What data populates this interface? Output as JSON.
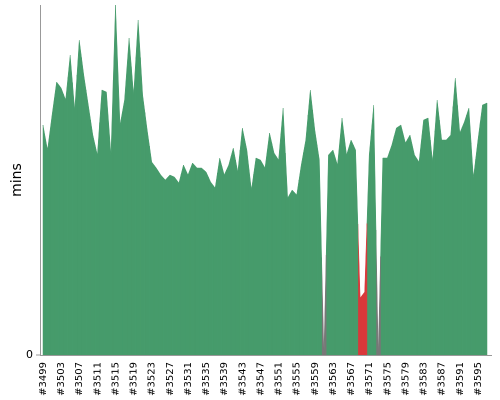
{
  "chart_data": {
    "type": "area",
    "y_label": "mins",
    "categories": [
      "#3499",
      null,
      null,
      null,
      "#3503",
      null,
      null,
      null,
      "#3507",
      null,
      null,
      null,
      "#3511",
      null,
      null,
      null,
      "#3515",
      null,
      null,
      null,
      "#3519",
      null,
      null,
      null,
      "#3523",
      null,
      null,
      null,
      "#3527",
      null,
      null,
      null,
      "#3531",
      null,
      null,
      null,
      "#3535",
      null,
      null,
      null,
      "#3539",
      null,
      null,
      null,
      "#3543",
      null,
      null,
      null,
      "#3547",
      null,
      null,
      null,
      "#3551",
      null,
      null,
      null,
      "#3555",
      null,
      null,
      null,
      "#3559",
      null,
      null,
      null,
      "#3563",
      null,
      null,
      null,
      "#3567",
      null,
      null,
      null,
      "#3571",
      null,
      null,
      null,
      "#3575",
      null,
      null,
      null,
      "#3579",
      null,
      null,
      null,
      "#3583",
      null,
      null,
      null,
      "#3587",
      null,
      null,
      null,
      "#3591",
      null,
      null,
      null,
      "#3595",
      null,
      null
    ],
    "values": [
      46,
      41,
      48,
      54.6,
      53.4,
      51,
      60,
      49,
      63,
      56,
      50,
      44,
      40,
      53,
      52.6,
      40,
      70,
      46,
      51,
      63.4,
      52,
      67,
      52,
      45,
      38.6,
      37.4,
      36,
      35,
      36,
      35.6,
      34.4,
      38,
      36,
      38.4,
      37.4,
      37.4,
      36.6,
      34.6,
      33.4,
      39.4,
      36,
      38,
      41.4,
      36.6,
      45.4,
      41,
      33,
      39.4,
      39,
      37.4,
      44.4,
      40.4,
      39,
      49.4,
      31.4,
      33,
      32,
      38,
      43,
      53,
      45,
      39,
      0,
      40,
      41,
      38,
      47.4,
      40,
      43,
      41,
      11.4,
      12.6,
      40,
      50,
      0,
      39.4,
      39.4,
      42,
      45.4,
      46,
      42.4,
      44,
      40,
      38.6,
      47,
      47.4,
      38.6,
      51,
      43,
      43,
      44,
      55.4,
      44.4,
      46.6,
      49.4,
      35.4,
      43,
      50,
      50.4
    ],
    "colors": [
      "#469b6b",
      "#469b6b",
      "#469b6b",
      "#469b6b",
      "#469b6b",
      "#469b6b",
      "#469b6b",
      "#469b6b",
      "#469b6b",
      "#469b6b",
      "#469b6b",
      "#469b6b",
      "#469b6b",
      "#469b6b",
      "#469b6b",
      "#469b6b",
      "#469b6b",
      "#469b6b",
      "#469b6b",
      "#469b6b",
      "#469b6b",
      "#469b6b",
      "#469b6b",
      "#469b6b",
      "#469b6b",
      "#469b6b",
      "#469b6b",
      "#469b6b",
      "#469b6b",
      "#469b6b",
      "#469b6b",
      "#469b6b",
      "#469b6b",
      "#469b6b",
      "#469b6b",
      "#469b6b",
      "#469b6b",
      "#469b6b",
      "#469b6b",
      "#469b6b",
      "#469b6b",
      "#469b6b",
      "#469b6b",
      "#469b6b",
      "#469b6b",
      "#469b6b",
      "#469b6b",
      "#469b6b",
      "#469b6b",
      "#469b6b",
      "#469b6b",
      "#469b6b",
      "#469b6b",
      "#469b6b",
      "#469b6b",
      "#469b6b",
      "#469b6b",
      "#469b6b",
      "#469b6b",
      "#469b6b",
      "#469b6b",
      "#469b6b",
      "#777777",
      "#469b6b",
      "#469b6b",
      "#469b6b",
      "#469b6b",
      "#469b6b",
      "#469b6b",
      "#469b6b",
      "#d9383a",
      "#d9383a",
      "#469b6b",
      "#469b6b",
      "#777777",
      "#469b6b",
      "#469b6b",
      "#469b6b",
      "#469b6b",
      "#469b6b",
      "#469b6b",
      "#469b6b",
      "#469b6b",
      "#469b6b",
      "#469b6b",
      "#469b6b",
      "#469b6b",
      "#469b6b",
      "#469b6b",
      "#469b6b",
      "#469b6b",
      "#469b6b",
      "#469b6b",
      "#469b6b",
      "#469b6b",
      "#469b6b",
      "#469b6b",
      "#469b6b",
      "#469b6b"
    ],
    "ylim": [
      0,
      70
    ],
    "yticks": [
      0
    ]
  }
}
